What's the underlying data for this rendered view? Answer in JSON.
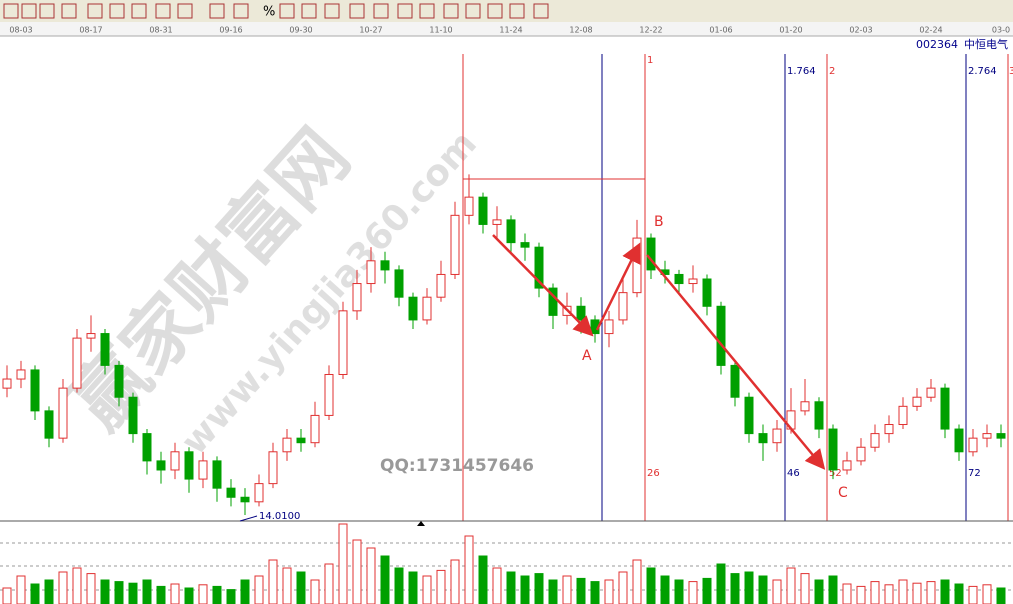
{
  "toolbar": {
    "percent": "%"
  },
  "chart_data": {
    "type": "candlestick",
    "stock_code": "002364",
    "stock_name": "中恒电气",
    "categories": [
      null,
      "08-03",
      null,
      null,
      null,
      null,
      "08-17",
      null,
      null,
      null,
      null,
      "08-31",
      null,
      null,
      null,
      null,
      "09-16",
      null,
      null,
      null,
      null,
      "09-30",
      null,
      null,
      null,
      null,
      "10-27",
      null,
      null,
      null,
      null,
      "11-10",
      null,
      null,
      null,
      null,
      "11-24",
      null,
      null,
      null,
      null,
      "12-08",
      null,
      null,
      null,
      null,
      "12-22",
      null,
      null,
      null,
      null,
      "01-06",
      null,
      null,
      null,
      null,
      "01-20",
      null,
      null,
      null,
      null,
      "02-03",
      null,
      null,
      null,
      null,
      "02-24",
      null,
      null,
      null,
      null,
      "03-0"
    ],
    "open": [
      16.8,
      17.0,
      17.2,
      16.3,
      15.7,
      16.8,
      17.9,
      18.0,
      17.3,
      16.6,
      15.8,
      15.2,
      15.0,
      15.4,
      14.8,
      15.2,
      14.6,
      14.4,
      14.3,
      14.7,
      15.4,
      15.7,
      15.6,
      16.2,
      17.1,
      18.5,
      19.1,
      19.6,
      19.4,
      18.8,
      18.3,
      18.8,
      19.3,
      20.6,
      21.0,
      20.4,
      20.5,
      20.0,
      19.9,
      19.0,
      18.4,
      18.6,
      18.3,
      18.0,
      18.3,
      18.9,
      20.1,
      19.4,
      19.3,
      19.1,
      19.2,
      18.6,
      17.3,
      16.6,
      15.8,
      15.6,
      15.9,
      16.3,
      16.5,
      15.9,
      15.0,
      15.2,
      15.5,
      15.8,
      16.0,
      16.4,
      16.6,
      16.8,
      15.9,
      15.4,
      15.7,
      15.8
    ],
    "high": [
      17.3,
      17.4,
      17.3,
      16.4,
      17.0,
      18.1,
      18.4,
      18.1,
      17.4,
      16.7,
      15.9,
      15.4,
      15.6,
      15.5,
      15.4,
      15.3,
      14.8,
      14.6,
      14.9,
      15.6,
      15.9,
      15.9,
      16.5,
      17.3,
      18.7,
      19.4,
      19.9,
      19.8,
      19.5,
      18.9,
      19.0,
      19.6,
      20.9,
      21.5,
      21.1,
      20.8,
      20.6,
      20.2,
      20.0,
      19.1,
      18.9,
      18.8,
      18.4,
      18.5,
      19.2,
      20.5,
      20.2,
      19.6,
      19.4,
      19.5,
      19.3,
      18.7,
      17.4,
      16.7,
      16.0,
      16.1,
      16.8,
      17.0,
      16.6,
      16.0,
      15.4,
      15.7,
      16.0,
      16.2,
      16.6,
      16.8,
      17.0,
      16.9,
      16.0,
      15.9,
      16.0,
      16.0
    ],
    "low": [
      16.6,
      16.8,
      16.1,
      15.5,
      15.6,
      16.7,
      17.6,
      17.1,
      16.4,
      15.6,
      14.9,
      14.7,
      14.8,
      14.5,
      14.6,
      14.3,
      14.2,
      14.01,
      14.2,
      14.6,
      15.2,
      15.4,
      15.5,
      16.1,
      17.0,
      18.3,
      18.9,
      19.1,
      18.6,
      18.1,
      18.2,
      18.7,
      19.2,
      20.4,
      20.2,
      20.1,
      19.8,
      19.6,
      18.8,
      18.1,
      18.2,
      18.0,
      17.8,
      17.7,
      18.2,
      18.8,
      19.2,
      19.1,
      18.9,
      18.9,
      18.4,
      17.1,
      16.4,
      15.6,
      15.2,
      15.4,
      15.8,
      16.2,
      15.7,
      14.8,
      14.9,
      15.1,
      15.4,
      15.6,
      15.9,
      16.3,
      16.5,
      15.7,
      15.2,
      15.3,
      15.5,
      15.5
    ],
    "close": [
      17.0,
      17.2,
      16.3,
      15.7,
      16.8,
      17.9,
      18.0,
      17.3,
      16.6,
      15.8,
      15.2,
      15.0,
      15.4,
      14.8,
      15.2,
      14.6,
      14.4,
      14.3,
      14.7,
      15.4,
      15.7,
      15.6,
      16.2,
      17.1,
      18.5,
      19.1,
      19.6,
      19.4,
      18.8,
      18.3,
      18.8,
      19.3,
      20.6,
      21.0,
      20.4,
      20.5,
      20.0,
      19.9,
      19.0,
      18.4,
      18.6,
      18.3,
      18.0,
      18.3,
      18.9,
      20.1,
      19.4,
      19.3,
      19.1,
      19.2,
      18.6,
      17.3,
      16.6,
      15.8,
      15.6,
      15.9,
      16.3,
      16.5,
      15.9,
      15.0,
      15.2,
      15.5,
      15.8,
      16.0,
      16.4,
      16.6,
      16.8,
      15.9,
      15.4,
      15.7,
      15.8,
      15.7
    ],
    "volume": [
      20,
      35,
      25,
      30,
      40,
      45,
      38,
      30,
      28,
      26,
      30,
      22,
      25,
      20,
      24,
      22,
      18,
      30,
      35,
      55,
      45,
      40,
      30,
      50,
      100,
      80,
      70,
      60,
      45,
      40,
      35,
      42,
      55,
      85,
      60,
      45,
      40,
      35,
      38,
      30,
      35,
      32,
      28,
      30,
      40,
      55,
      45,
      35,
      30,
      28,
      32,
      50,
      38,
      40,
      35,
      30,
      45,
      38,
      30,
      35,
      25,
      22,
      28,
      24,
      30,
      26,
      28,
      30,
      25,
      22,
      24,
      20
    ],
    "ylim": [
      13.9,
      24.5
    ],
    "volume_ylim": [
      0,
      100
    ],
    "up_color": "#e03030",
    "down_color": "#00a000",
    "low_label": "14.0100",
    "wave_labels": [
      "A",
      "B",
      "C"
    ],
    "time_zone_top": [
      "1",
      "1.764",
      "2",
      "2.764",
      "3"
    ],
    "time_zone_bottom": [
      "26",
      "46",
      "52",
      "72"
    ],
    "watermark": "赢家财富网",
    "watermark_url": "www.yingjia360.com",
    "qq": "QQ:1731457646"
  }
}
